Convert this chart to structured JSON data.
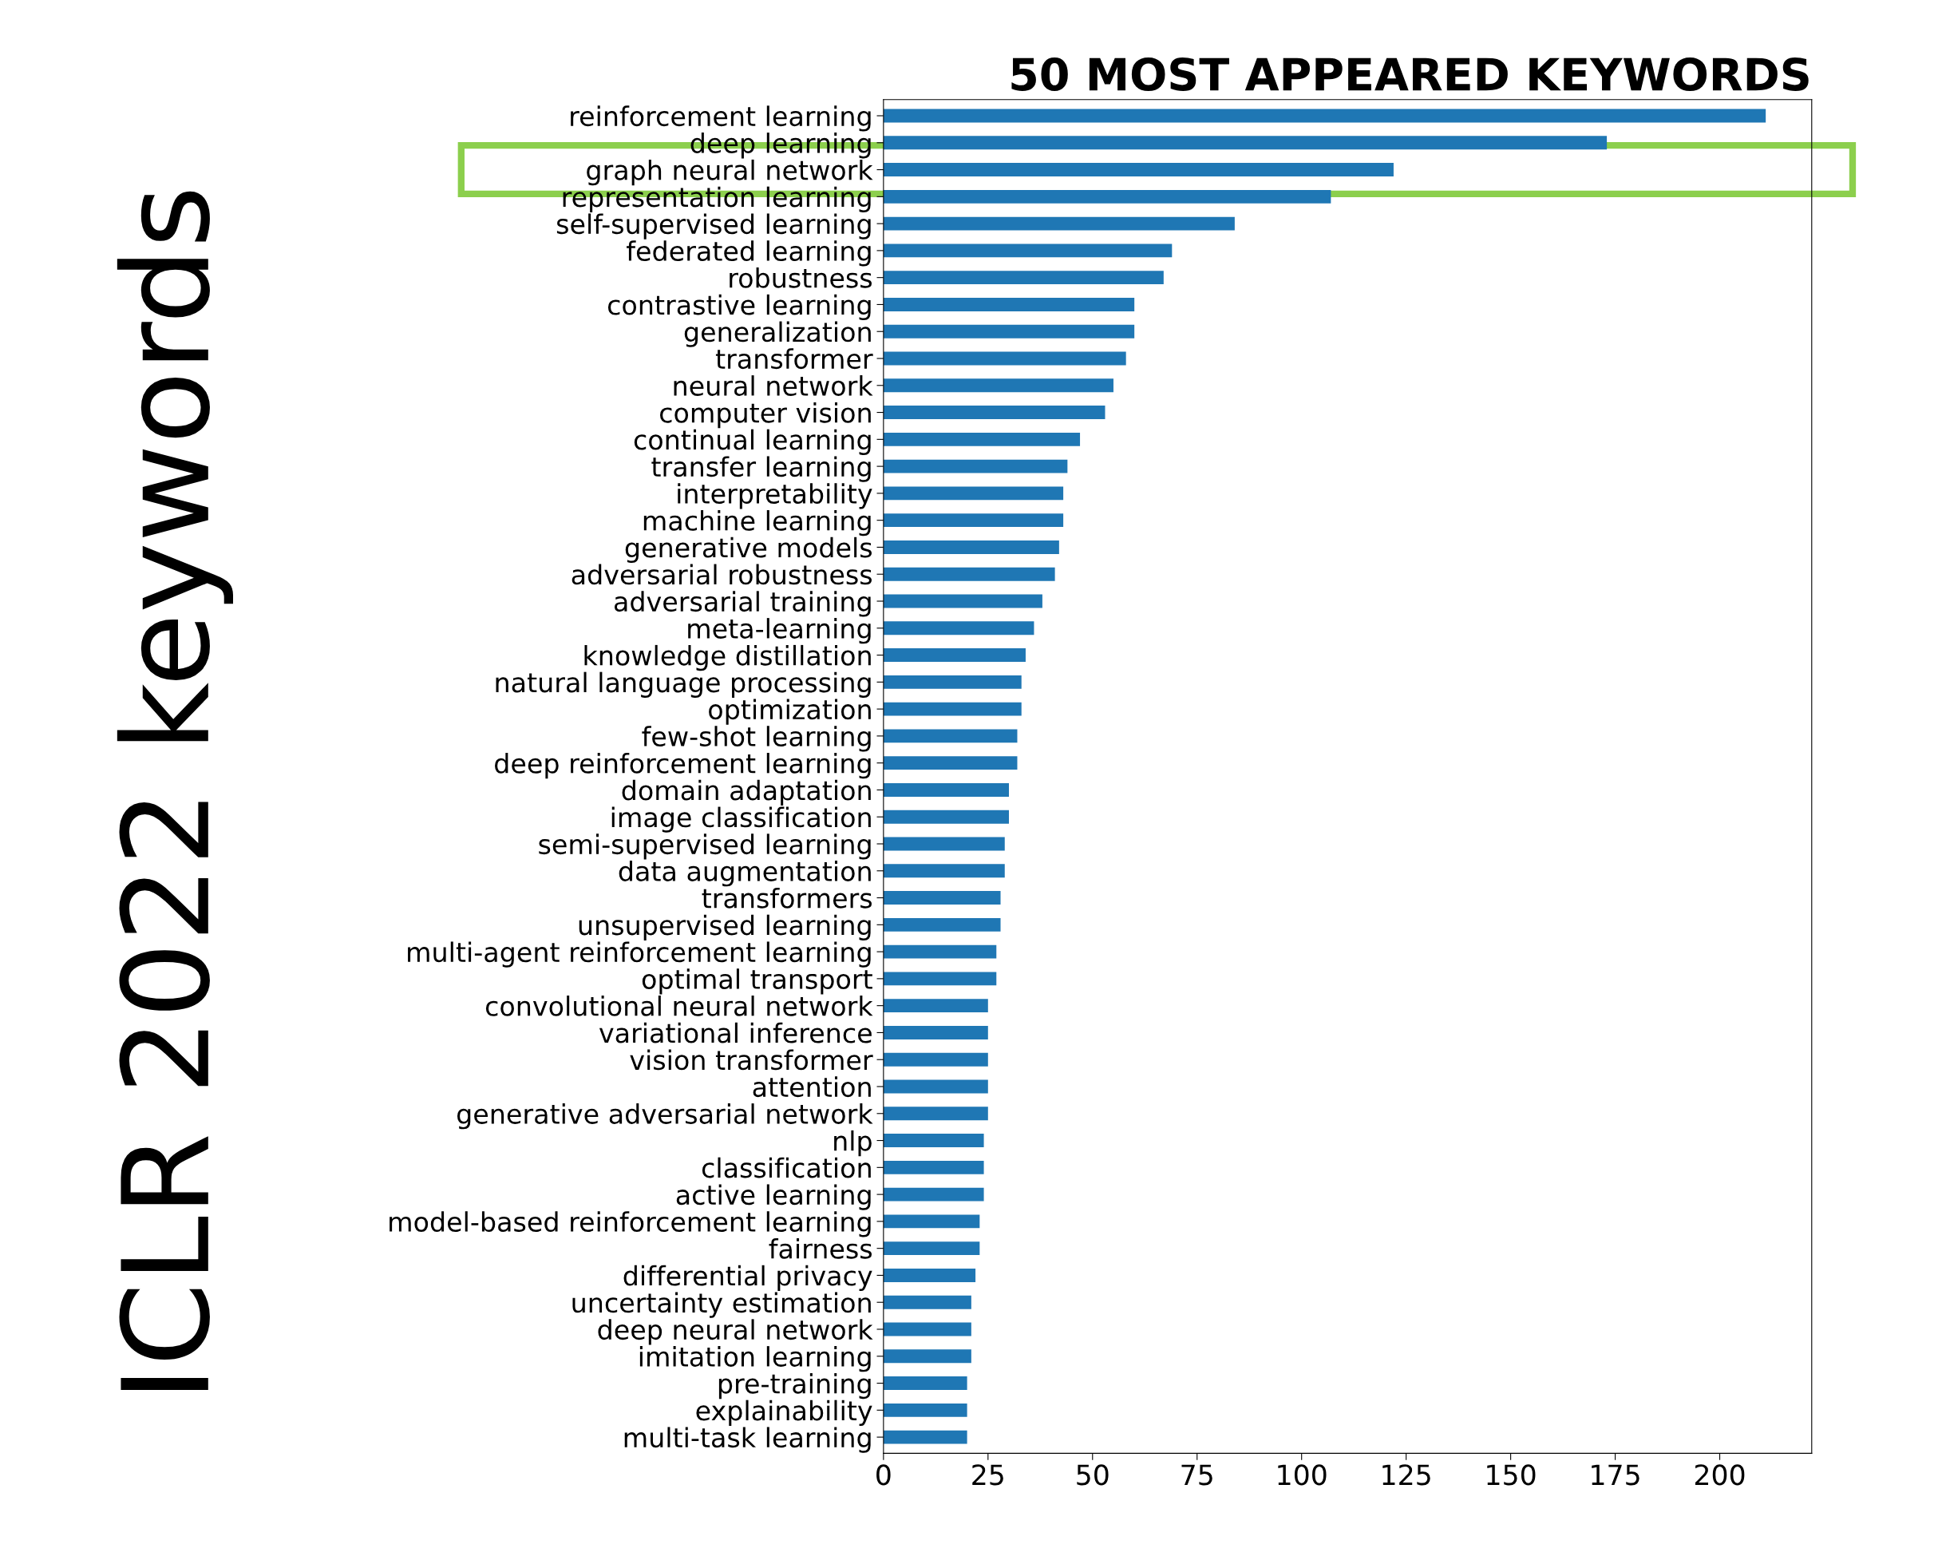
{
  "chart_data": {
    "type": "bar",
    "orientation": "horizontal",
    "title": "50 MOST APPEARED KEYWORDS",
    "annotations": [
      "ICLR 2022 keywords"
    ],
    "categories": [
      "reinforcement learning",
      "deep learning",
      "graph neural network",
      "representation learning",
      "self-supervised learning",
      "federated learning",
      "robustness",
      "contrastive learning",
      "generalization",
      "transformer",
      "neural network",
      "computer vision",
      "continual learning",
      "transfer learning",
      "interpretability",
      "machine learning",
      "generative models",
      "adversarial robustness",
      "adversarial training",
      "meta-learning",
      "knowledge distillation",
      "natural language processing",
      "optimization",
      "few-shot learning",
      "deep reinforcement learning",
      "domain adaptation",
      "image classification",
      "semi-supervised learning",
      "data augmentation",
      "transformers",
      "unsupervised learning",
      "multi-agent reinforcement learning",
      "optimal transport",
      "convolutional neural network",
      "variational inference",
      "vision transformer",
      "attention",
      "generative adversarial network",
      "nlp",
      "classification",
      "active learning",
      "model-based reinforcement learning",
      "fairness",
      "differential privacy",
      "uncertainty estimation",
      "deep neural network",
      "imitation learning",
      "pre-training",
      "explainability",
      "multi-task learning"
    ],
    "values": [
      211,
      173,
      122,
      107,
      84,
      69,
      67,
      60,
      60,
      58,
      55,
      53,
      47,
      44,
      43,
      43,
      42,
      41,
      38,
      36,
      34,
      33,
      33,
      32,
      32,
      30,
      30,
      29,
      29,
      28,
      28,
      27,
      27,
      25,
      25,
      25,
      25,
      25,
      24,
      24,
      24,
      23,
      23,
      22,
      21,
      21,
      21,
      20,
      20,
      20
    ],
    "color": "#1f77b4",
    "xlim": [
      0,
      222
    ],
    "xticks": [
      0,
      25,
      50,
      75,
      100,
      125,
      150,
      175,
      200
    ],
    "grid": false
  }
}
